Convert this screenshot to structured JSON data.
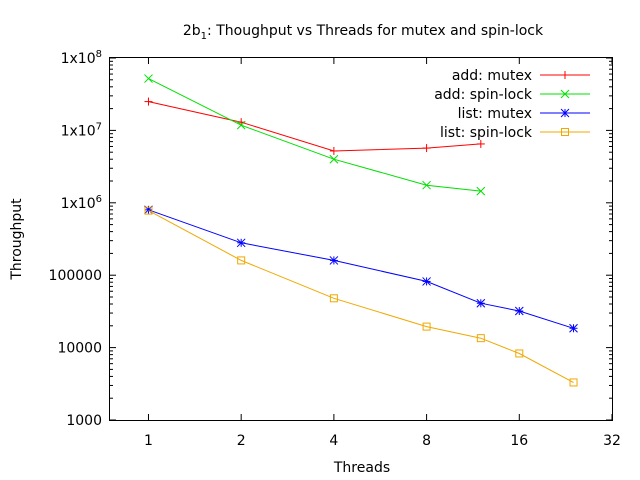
{
  "chart_data": {
    "type": "line",
    "title_main": "2b",
    "title_sub": "1",
    "title_rest": ": Thoughput vs Threads for mutex and spin-lock",
    "xlabel": "Threads",
    "ylabel": "Throughput",
    "x_scale": "log2",
    "y_scale": "log10",
    "xlim": [
      0.75,
      32
    ],
    "ylim": [
      1000,
      100000000
    ],
    "x_ticks": [
      {
        "value": 1,
        "label": "1"
      },
      {
        "value": 2,
        "label": "2"
      },
      {
        "value": 4,
        "label": "4"
      },
      {
        "value": 8,
        "label": "8"
      },
      {
        "value": 16,
        "label": "16"
      },
      {
        "value": 32,
        "label": "32"
      }
    ],
    "y_ticks": [
      {
        "value": 1000,
        "label": "1000",
        "base": "",
        "exp": ""
      },
      {
        "value": 10000,
        "label": "10000",
        "base": "",
        "exp": ""
      },
      {
        "value": 100000,
        "label": "100000",
        "base": "",
        "exp": ""
      },
      {
        "value": 1000000,
        "label": "",
        "base": "1x10",
        "exp": "6"
      },
      {
        "value": 10000000,
        "label": "",
        "base": "1x10",
        "exp": "7"
      },
      {
        "value": 100000000,
        "label": "",
        "base": "1x10",
        "exp": "8"
      }
    ],
    "legend_position": "top-right",
    "grid": false,
    "series": [
      {
        "name": "add: mutex",
        "color": "#ff0000",
        "marker": "plus",
        "x": [
          1,
          2,
          4,
          8,
          12
        ],
        "y": [
          25000000,
          13000000,
          5200000,
          5700000,
          6500000
        ]
      },
      {
        "name": "add: spin-lock",
        "color": "#00e000",
        "marker": "cross",
        "x": [
          1,
          2,
          4,
          8,
          12
        ],
        "y": [
          52000000,
          11800000,
          4000000,
          1750000,
          1450000
        ]
      },
      {
        "name": "list: mutex",
        "color": "#0000ff",
        "marker": "star",
        "x": [
          1,
          2,
          4,
          8,
          12,
          16,
          24
        ],
        "y": [
          800000,
          280000,
          160000,
          82000,
          41000,
          32000,
          18500
        ]
      },
      {
        "name": "list: spin-lock",
        "color": "#f0a800",
        "marker": "square",
        "x": [
          1,
          2,
          4,
          8,
          12,
          16,
          24
        ],
        "y": [
          780000,
          160000,
          48000,
          19500,
          13500,
          8300,
          3300
        ]
      }
    ]
  }
}
